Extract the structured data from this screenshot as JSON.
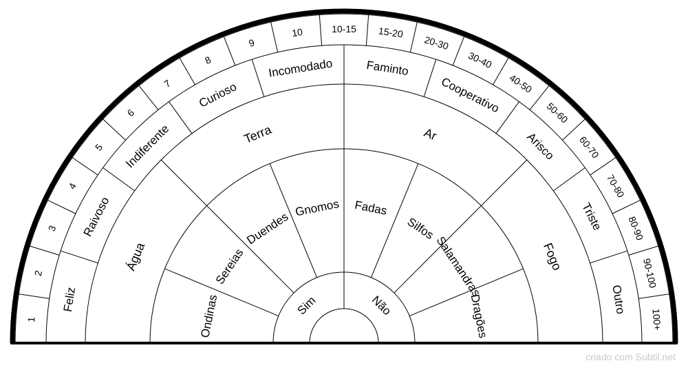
{
  "rings": {
    "center": [
      "Sim",
      "Não"
    ],
    "beings": [
      "Ondinas",
      "Sereias",
      "Duendes",
      "Gnomos",
      "Fadas",
      "Silfos",
      "Salamandras",
      "Dragões"
    ],
    "elements": [
      "Água",
      "Terra",
      "Ar",
      "Fogo"
    ],
    "moods": [
      "Feliz",
      "Raivoso",
      "Indiferente",
      "Curioso",
      "Incomodado",
      "Faminto",
      "Cooperativo",
      "Arisco",
      "Triste",
      "Outro"
    ],
    "ages": [
      "1",
      "2",
      "3",
      "4",
      "5",
      "6",
      "7",
      "8",
      "9",
      "10",
      "10-15",
      "15-20",
      "20-30",
      "30-40",
      "40-50",
      "50-60",
      "60-70",
      "70-80",
      "80-90",
      "90-100",
      "100+"
    ]
  },
  "footer": {
    "credit": "criado com Subtil.net"
  },
  "colors": {
    "stroke": "#000000",
    "credit": "#c8c8c8",
    "background": "#ffffff"
  }
}
